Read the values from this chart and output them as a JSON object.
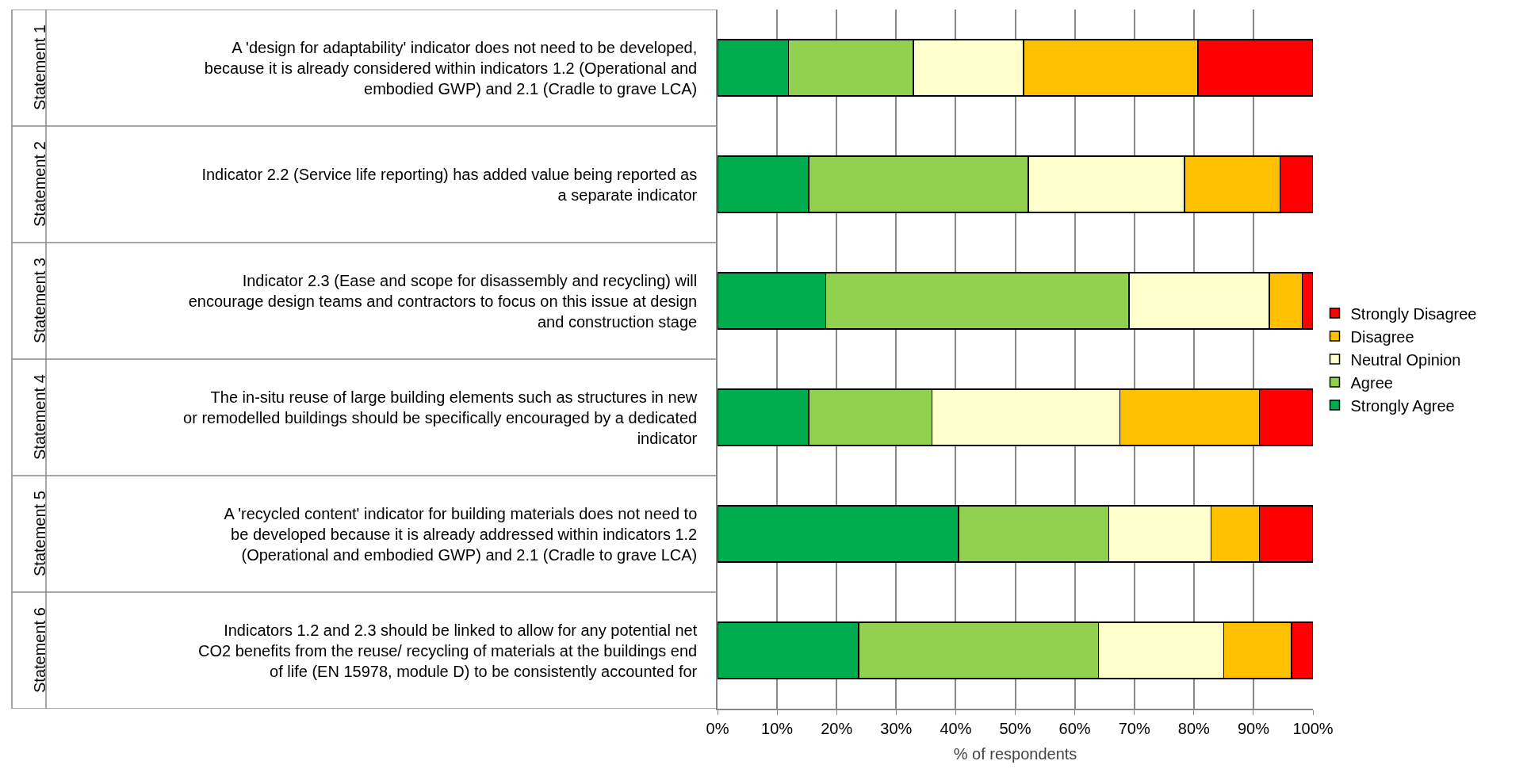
{
  "chart_data": {
    "type": "bar",
    "orientation": "horizontal",
    "stacked": true,
    "xlabel": "% of respondents",
    "categories": [
      "A 'design for adaptability' indicator does not need to be developed, because it is already considered within indicators 1.2 (Operational and embodied GWP) and 2.1 (Cradle to grave LCA)",
      "Indicator 2.2 (Service life reporting) has added value being reported as a separate indicator",
      "Indicator 2.3 (Ease and scope for disassembly and recycling) will encourage design teams and contractors to focus on this issue at design and construction stage",
      "The in-situ reuse of large building elements such as structures in new or remodelled buildings should be specifically encouraged by a dedicated indicator",
      "A 'recycled content' indicator for building materials does not need to be developed because it is already addressed within indicators 1.2 (Operational and embodied GWP) and 2.1 (Cradle to grave LCA)",
      "Indicators 1.2 and 2.3 should be linked to allow for any potential net CO2 benefits from the reuse/ recycling of materials at the buildings end of life (EN 15978, module D) to be consistently accounted for"
    ],
    "annotations": [
      "Statement 1",
      "Statement 2",
      "Statement 3",
      "Statement 4",
      "Statement 5",
      "Statement 6"
    ],
    "series": [
      {
        "name": "Strongly Agree",
        "color": "#00ad4e",
        "values": [
          11.9,
          15.3,
          18.2,
          15.3,
          40.5,
          23.7
        ]
      },
      {
        "name": "Agree",
        "color": "#92d050",
        "values": [
          21.0,
          36.9,
          50.9,
          20.7,
          25.2,
          40.3
        ]
      },
      {
        "name": "Neutral Opinion",
        "color": "#ffffcc",
        "values": [
          18.5,
          26.2,
          23.6,
          31.6,
          17.2,
          21.0
        ]
      },
      {
        "name": "Disagree",
        "color": "#ffc000",
        "values": [
          29.3,
          16.1,
          5.5,
          23.4,
          8.1,
          11.4
        ]
      },
      {
        "name": "Strongly Disagree",
        "color": "#ff0000",
        "values": [
          19.3,
          5.5,
          1.8,
          9.0,
          9.0,
          3.6
        ]
      }
    ],
    "xlim": [
      0,
      100
    ],
    "xticks": [
      {
        "value": 0,
        "label": "0%"
      },
      {
        "value": 10,
        "label": "10%"
      },
      {
        "value": 20,
        "label": "20%"
      },
      {
        "value": 30,
        "label": "30%"
      },
      {
        "value": 40,
        "label": "40%"
      },
      {
        "value": 50,
        "label": "50%"
      },
      {
        "value": 60,
        "label": "60%"
      },
      {
        "value": 70,
        "label": "70%"
      },
      {
        "value": 80,
        "label": "80%"
      },
      {
        "value": 90,
        "label": "90%"
      },
      {
        "value": 100,
        "label": "100%"
      }
    ],
    "grid": "x",
    "legend": "right"
  }
}
